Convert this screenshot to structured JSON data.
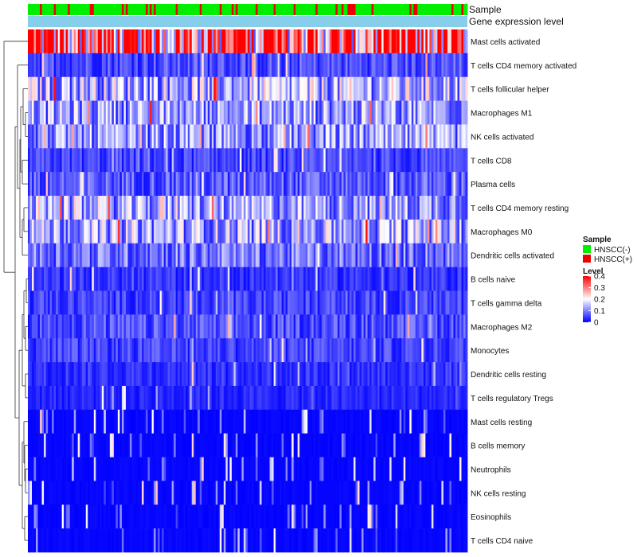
{
  "chart_data": {
    "type": "heatmap",
    "title": "",
    "annotation_tracks": [
      "Sample",
      "Gene expression level"
    ],
    "row_labels": [
      "Mast cells activated",
      "T cells CD4 memory activated",
      "T cells follicular helper",
      "Macrophages M1",
      "NK cells activated",
      "T cells CD8",
      "Plasma cells",
      "T cells CD4 memory resting",
      "Macrophages M0",
      "Dendritic cells activated",
      "B cells naive",
      "T cells gamma delta",
      "Macrophages M2",
      "Monocytes",
      "Dendritic cells resting",
      "T cells regulatory  Tregs",
      "Mast cells resting",
      "B cells memory",
      "Neutrophils",
      "NK cells resting",
      "Eosinophils",
      "T cells CD4 naive"
    ],
    "row_mean_level": [
      0.3,
      0.06,
      0.14,
      0.12,
      0.11,
      0.05,
      0.07,
      0.12,
      0.13,
      0.09,
      0.04,
      0.05,
      0.06,
      0.05,
      0.04,
      0.03,
      0.01,
      0.01,
      0.02,
      0.01,
      0.005,
      0.02
    ],
    "num_samples": 220,
    "sample_groups": {
      "legend_title": "Sample",
      "labels": [
        "HNSCC(-)",
        "HNSCC(+)"
      ],
      "colors": [
        "#00ee00",
        "#ee0000"
      ],
      "approx_fraction_positive": 0.2
    },
    "color_scale": {
      "legend_title": "Level",
      "ticks": [
        "0.4",
        "0.3",
        "0.2",
        "0.1",
        "0"
      ],
      "tick_values": [
        0.4,
        0.3,
        0.2,
        0.1,
        0
      ],
      "range": [
        0,
        0.4
      ],
      "low_color": "#0000ff",
      "mid_color": "#ffffff",
      "high_color": "#ff0000",
      "expression_track_color": "#87ceeb"
    }
  }
}
